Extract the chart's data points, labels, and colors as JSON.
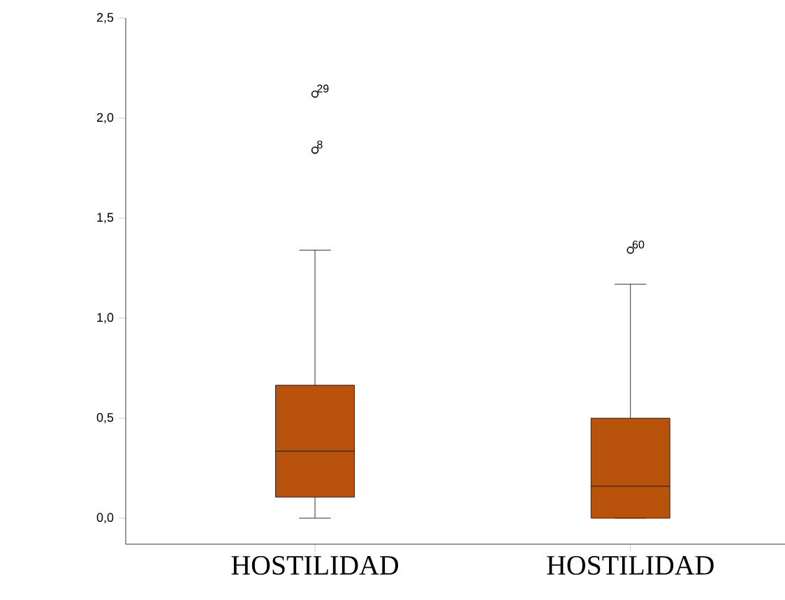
{
  "chart_data": {
    "type": "box",
    "categories": [
      "HOSTILIDAD",
      "HOSTILIDAD"
    ],
    "color": "#b9520a",
    "boxes": [
      {
        "low": 0,
        "q1": 0.105,
        "median": 0.335,
        "q3": 0.665,
        "high": 1.34,
        "outliers": [
          2.12,
          1.84
        ]
      },
      {
        "low": 0,
        "q1": 0,
        "median": 0.16,
        "q3": 0.5,
        "high": 1.17,
        "outliers": [
          1.34
        ]
      }
    ],
    "ylim": [
      -0.13,
      2.5
    ],
    "yticks": [
      {
        "value": 0,
        "label": "0,0"
      },
      {
        "value": 0.5,
        "label": "0,5"
      },
      {
        "value": 1,
        "label": "1,0"
      },
      {
        "value": 1.5,
        "label": "1,5"
      },
      {
        "value": 2,
        "label": "2,0"
      },
      {
        "value": 2.5,
        "label": "2,5"
      }
    ],
    "annotations": [
      "29",
      "8",
      "60"
    ],
    "grid": false,
    "marker": "circle"
  }
}
